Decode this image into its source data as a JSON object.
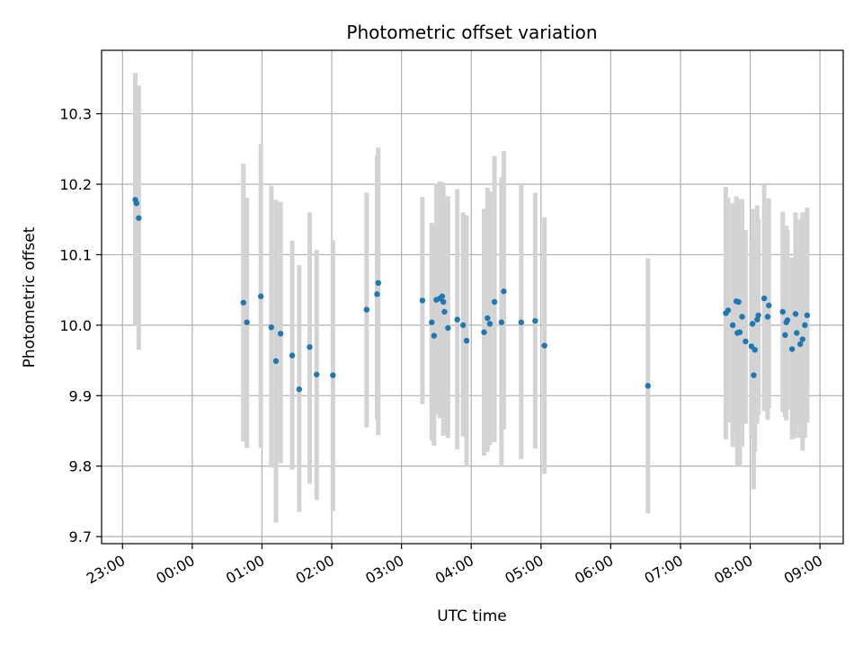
{
  "chart_data": {
    "type": "scatter",
    "title": "Photometric offset variation",
    "xlabel": "UTC time",
    "ylabel": "Photometric offset",
    "grid": true,
    "x_unit": "UTC",
    "x_tick_labels": [
      "23:00",
      "00:00",
      "01:00",
      "02:00",
      "03:00",
      "04:00",
      "05:00",
      "06:00",
      "07:00",
      "08:00",
      "09:00"
    ],
    "xlim": [
      "22:42",
      "09:20"
    ],
    "y_ticks": [
      9.7,
      9.8,
      9.9,
      10.0,
      10.1,
      10.2,
      10.3
    ],
    "y_tick_labels": [
      "9.7",
      "9.8",
      "9.9",
      "10.0",
      "10.1",
      "10.2",
      "10.3"
    ],
    "ylim": [
      9.69,
      10.39
    ],
    "marker_color": "#1f77b4",
    "errorbar_color": "#d3d3d3",
    "points": [
      {
        "x": "23:11",
        "y": 10.178,
        "yerr_low": 10.0,
        "yerr_high": 10.358
      },
      {
        "x": "23:12",
        "y": 10.173,
        "yerr_low": 10.0,
        "yerr_high": 10.34
      },
      {
        "x": "23:14",
        "y": 10.152,
        "yerr_low": 9.965,
        "yerr_high": 10.34
      },
      {
        "x": "00:44",
        "y": 10.032,
        "yerr_low": 9.835,
        "yerr_high": 10.229
      },
      {
        "x": "00:47",
        "y": 10.004,
        "yerr_low": 9.826,
        "yerr_high": 10.181
      },
      {
        "x": "00:59",
        "y": 10.041,
        "yerr_low": 9.826,
        "yerr_high": 10.257
      },
      {
        "x": "01:08",
        "y": 9.997,
        "yerr_low": 9.798,
        "yerr_high": 10.198
      },
      {
        "x": "01:12",
        "y": 9.949,
        "yerr_low": 9.72,
        "yerr_high": 10.178
      },
      {
        "x": "01:16",
        "y": 9.988,
        "yerr_low": 9.804,
        "yerr_high": 10.175
      },
      {
        "x": "01:26",
        "y": 9.957,
        "yerr_low": 9.795,
        "yerr_high": 10.12
      },
      {
        "x": "01:32",
        "y": 9.909,
        "yerr_low": 9.735,
        "yerr_high": 10.085
      },
      {
        "x": "01:41",
        "y": 9.969,
        "yerr_low": 9.775,
        "yerr_high": 10.16
      },
      {
        "x": "01:47",
        "y": 9.93,
        "yerr_low": 9.752,
        "yerr_high": 10.107
      },
      {
        "x": "02:01",
        "y": 9.929,
        "yerr_low": 9.736,
        "yerr_high": 10.121
      },
      {
        "x": "02:30",
        "y": 10.022,
        "yerr_low": 9.855,
        "yerr_high": 10.188
      },
      {
        "x": "02:39",
        "y": 10.044,
        "yerr_low": 9.866,
        "yerr_high": 10.241
      },
      {
        "x": "02:40",
        "y": 10.06,
        "yerr_low": 9.844,
        "yerr_high": 10.252
      },
      {
        "x": "03:18",
        "y": 10.035,
        "yerr_low": 9.888,
        "yerr_high": 10.182
      },
      {
        "x": "03:26",
        "y": 10.004,
        "yerr_low": 9.836,
        "yerr_high": 10.145
      },
      {
        "x": "03:28",
        "y": 9.985,
        "yerr_low": 9.829,
        "yerr_high": 10.141
      },
      {
        "x": "03:30",
        "y": 10.036,
        "yerr_low": 9.873,
        "yerr_high": 10.201
      },
      {
        "x": "03:33",
        "y": 10.038,
        "yerr_low": 9.868,
        "yerr_high": 10.204
      },
      {
        "x": "03:35",
        "y": 10.041,
        "yerr_low": 9.878,
        "yerr_high": 10.203
      },
      {
        "x": "03:36",
        "y": 10.033,
        "yerr_low": 9.843,
        "yerr_high": 10.198
      },
      {
        "x": "03:37",
        "y": 10.019,
        "yerr_low": 9.848,
        "yerr_high": 10.177
      },
      {
        "x": "03:40",
        "y": 9.996,
        "yerr_low": 9.84,
        "yerr_high": 10.183
      },
      {
        "x": "03:48",
        "y": 10.008,
        "yerr_low": 9.824,
        "yerr_high": 10.193
      },
      {
        "x": "03:53",
        "y": 10.0,
        "yerr_low": 9.842,
        "yerr_high": 10.16
      },
      {
        "x": "03:56",
        "y": 9.978,
        "yerr_low": 9.8,
        "yerr_high": 10.156
      },
      {
        "x": "04:11",
        "y": 9.99,
        "yerr_low": 9.815,
        "yerr_high": 10.165
      },
      {
        "x": "04:14",
        "y": 10.01,
        "yerr_low": 9.82,
        "yerr_high": 10.195
      },
      {
        "x": "04:16",
        "y": 10.002,
        "yerr_low": 9.83,
        "yerr_high": 10.19
      },
      {
        "x": "04:20",
        "y": 10.033,
        "yerr_low": 9.834,
        "yerr_high": 10.24
      },
      {
        "x": "04:26",
        "y": 10.004,
        "yerr_low": 9.8,
        "yerr_high": 10.21
      },
      {
        "x": "04:28",
        "y": 10.048,
        "yerr_low": 9.852,
        "yerr_high": 10.247
      },
      {
        "x": "04:43",
        "y": 10.004,
        "yerr_low": 9.81,
        "yerr_high": 10.2
      },
      {
        "x": "04:55",
        "y": 10.006,
        "yerr_low": 9.825,
        "yerr_high": 10.188
      },
      {
        "x": "05:03",
        "y": 9.971,
        "yerr_low": 9.789,
        "yerr_high": 10.153
      },
      {
        "x": "06:32",
        "y": 9.914,
        "yerr_low": 9.733,
        "yerr_high": 10.095
      },
      {
        "x": "07:39",
        "y": 10.017,
        "yerr_low": 9.838,
        "yerr_high": 10.196
      },
      {
        "x": "07:41",
        "y": 10.021,
        "yerr_low": 9.862,
        "yerr_high": 10.181
      },
      {
        "x": "07:45",
        "y": 10.0,
        "yerr_low": 9.827,
        "yerr_high": 10.173
      },
      {
        "x": "07:48",
        "y": 10.034,
        "yerr_low": 9.85,
        "yerr_high": 10.183
      },
      {
        "x": "07:49",
        "y": 9.989,
        "yerr_low": 9.8,
        "yerr_high": 10.18
      },
      {
        "x": "07:50",
        "y": 10.033,
        "yerr_low": 9.847,
        "yerr_high": 10.17
      },
      {
        "x": "07:51",
        "y": 9.99,
        "yerr_low": 9.8,
        "yerr_high": 10.175
      },
      {
        "x": "07:53",
        "y": 10.012,
        "yerr_low": 9.828,
        "yerr_high": 10.179
      },
      {
        "x": "07:56",
        "y": 9.977,
        "yerr_low": 9.86,
        "yerr_high": 10.135
      },
      {
        "x": "08:01",
        "y": 9.97,
        "yerr_low": 9.843,
        "yerr_high": 10.12
      },
      {
        "x": "08:02",
        "y": 10.002,
        "yerr_low": 9.84,
        "yerr_high": 10.165
      },
      {
        "x": "08:03",
        "y": 9.929,
        "yerr_low": 9.767,
        "yerr_high": 10.12
      },
      {
        "x": "08:04",
        "y": 9.965,
        "yerr_low": 9.82,
        "yerr_high": 10.125
      },
      {
        "x": "08:06",
        "y": 10.008,
        "yerr_low": 9.86,
        "yerr_high": 10.17
      },
      {
        "x": "08:07",
        "y": 10.014,
        "yerr_low": 9.873,
        "yerr_high": 10.15
      },
      {
        "x": "08:12",
        "y": 10.038,
        "yerr_low": 9.878,
        "yerr_high": 10.2
      },
      {
        "x": "08:15",
        "y": 10.012,
        "yerr_low": 9.866,
        "yerr_high": 10.16
      },
      {
        "x": "08:16",
        "y": 10.028,
        "yerr_low": 9.882,
        "yerr_high": 10.18
      },
      {
        "x": "08:28",
        "y": 10.019,
        "yerr_low": 9.877,
        "yerr_high": 10.161
      },
      {
        "x": "08:30",
        "y": 9.986,
        "yerr_low": 9.87,
        "yerr_high": 10.115
      },
      {
        "x": "08:31",
        "y": 10.004,
        "yerr_low": 9.865,
        "yerr_high": 10.141
      },
      {
        "x": "08:32",
        "y": 10.007,
        "yerr_low": 9.88,
        "yerr_high": 10.135
      },
      {
        "x": "08:36",
        "y": 9.966,
        "yerr_low": 9.838,
        "yerr_high": 10.096
      },
      {
        "x": "08:39",
        "y": 10.016,
        "yerr_low": 9.84,
        "yerr_high": 10.16
      },
      {
        "x": "08:40",
        "y": 9.989,
        "yerr_low": 9.86,
        "yerr_high": 10.11
      },
      {
        "x": "08:43",
        "y": 9.973,
        "yerr_low": 9.84,
        "yerr_high": 10.15
      },
      {
        "x": "08:45",
        "y": 9.98,
        "yerr_low": 9.822,
        "yerr_high": 10.16
      },
      {
        "x": "08:47",
        "y": 10.0,
        "yerr_low": 9.84,
        "yerr_high": 10.16
      },
      {
        "x": "08:49",
        "y": 10.014,
        "yerr_low": 9.862,
        "yerr_high": 10.167
      }
    ]
  }
}
